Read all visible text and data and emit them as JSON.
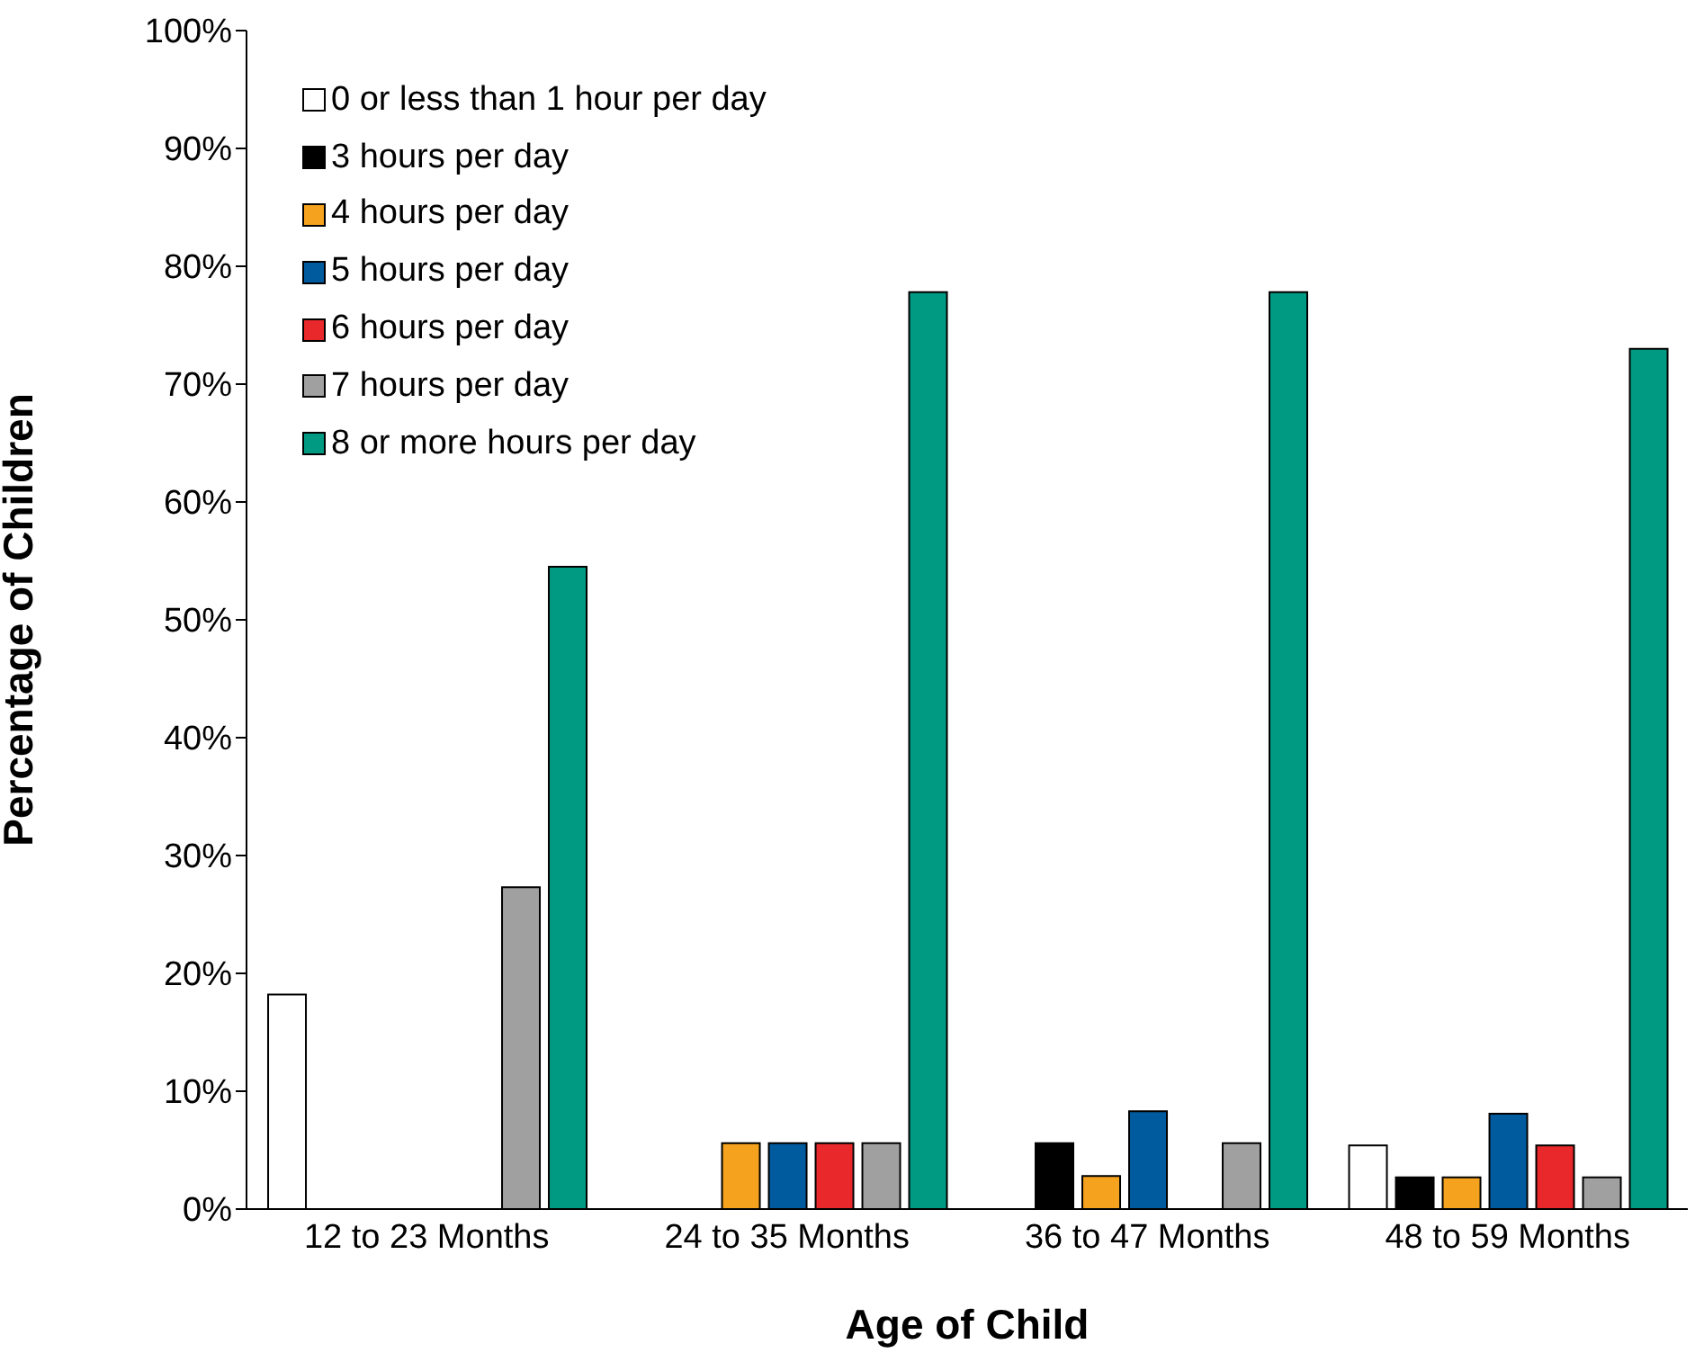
{
  "chart_data": {
    "type": "bar",
    "xlabel": "Age of Child",
    "ylabel": "Percentage of Children",
    "categories": [
      "12 to 23 Months",
      "24 to 35 Months",
      "36 to 47 Months",
      "48 to 59 Months"
    ],
    "series": [
      {
        "name": "0 or less than 1 hour per day",
        "color": "#ffffff",
        "values": [
          18.2,
          0,
          0,
          5.4
        ]
      },
      {
        "name": "3 hours per day",
        "color": "#000000",
        "values": [
          0,
          0,
          5.6,
          2.7
        ]
      },
      {
        "name": "4 hours per day",
        "color": "#f5a21e",
        "values": [
          0,
          5.6,
          2.8,
          2.7
        ]
      },
      {
        "name": "5 hours per day",
        "color": "#005b9e",
        "values": [
          0,
          5.6,
          8.3,
          8.1
        ]
      },
      {
        "name": "6 hours per day",
        "color": "#e8282b",
        "values": [
          0,
          5.6,
          0,
          5.4
        ]
      },
      {
        "name": "7 hours per day",
        "color": "#a0a0a0",
        "values": [
          27.3,
          5.6,
          5.6,
          2.7
        ]
      },
      {
        "name": "8 or more hours per day",
        "color": "#009a82",
        "values": [
          54.5,
          77.8,
          77.8,
          73.0
        ]
      }
    ],
    "ylim": [
      0,
      100
    ],
    "yticks": [
      {
        "value": 0,
        "label": "0%"
      },
      {
        "value": 10,
        "label": "10%"
      },
      {
        "value": 20,
        "label": "20%"
      },
      {
        "value": 30,
        "label": "30%"
      },
      {
        "value": 40,
        "label": "40%"
      },
      {
        "value": 50,
        "label": "50%"
      },
      {
        "value": 60,
        "label": "60%"
      },
      {
        "value": 70,
        "label": "70%"
      },
      {
        "value": 80,
        "label": "80%"
      },
      {
        "value": 90,
        "label": "90%"
      },
      {
        "value": 100,
        "label": "100%"
      }
    ],
    "legend": "top left"
  }
}
